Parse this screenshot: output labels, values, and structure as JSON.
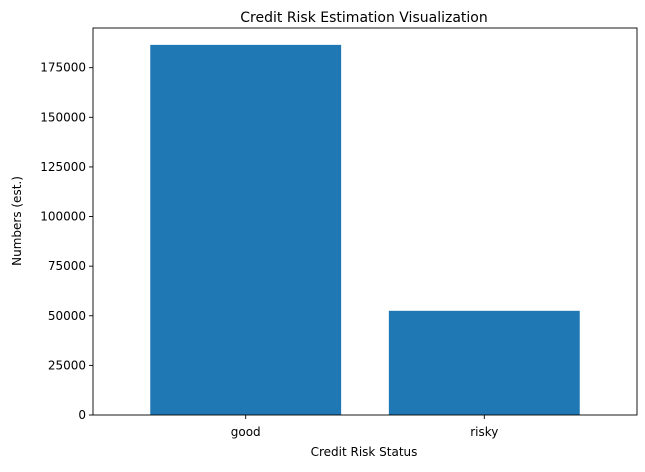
{
  "chart_data": {
    "type": "bar",
    "title": "Credit Risk Estimation Visualization",
    "xlabel": "Credit Risk Status",
    "ylabel": "Numbers (est.)",
    "categories": [
      "good",
      "risky"
    ],
    "values": [
      186500,
      52500
    ],
    "ylim": [
      0,
      195000
    ],
    "yticks": [
      0,
      25000,
      50000,
      75000,
      100000,
      125000,
      150000,
      175000
    ],
    "colors": {
      "bar": "#1f77b4"
    },
    "grid": false,
    "legend": "none"
  }
}
